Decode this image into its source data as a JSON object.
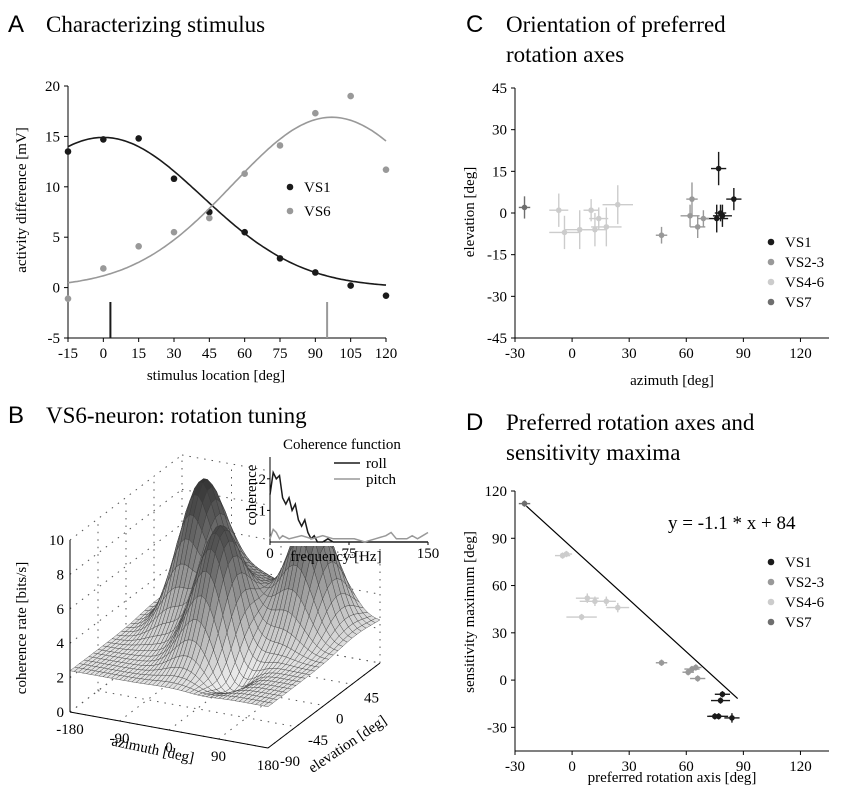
{
  "colors": {
    "vs1": "#1a1a1a",
    "vs23": "#999999",
    "vs46": "#cccccc",
    "vs7": "#6e6e6e",
    "axis": "#000000"
  },
  "chart_data": [
    {
      "panel": "A",
      "type": "scatter",
      "title": "Characterizing stimulus",
      "xlabel": "stimulus location [deg]",
      "ylabel": "activity difference [mV]",
      "xlim": [
        -15,
        120
      ],
      "ylim": [
        -5,
        20
      ],
      "xticks": [
        "-15",
        "0",
        "15",
        "30",
        "45",
        "60",
        "75",
        "90",
        "105",
        "120"
      ],
      "yticks": [
        "-5",
        "0",
        "5",
        "10",
        "15",
        "20"
      ],
      "legend_position": "right",
      "series": [
        {
          "name": "VS1",
          "color_key": "vs1",
          "x": [
            -15,
            0,
            15,
            30,
            45,
            60,
            75,
            90,
            105,
            120
          ],
          "y": [
            13.5,
            14.7,
            14.8,
            10.8,
            7.5,
            5.5,
            2.9,
            1.5,
            0.2,
            -0.8
          ],
          "fit_peak_x": 0,
          "fit_peak_y": 14.9,
          "fit_baseline": 0,
          "fit_sigma": 42,
          "marker_x": 3
        },
        {
          "name": "VS6",
          "color_key": "vs23",
          "x": [
            -15,
            0,
            15,
            30,
            45,
            60,
            75,
            90,
            105,
            120
          ],
          "y": [
            -1.1,
            1.9,
            4.1,
            5.5,
            6.9,
            11.3,
            14.1,
            17.3,
            19.0,
            11.7
          ],
          "fit_peak_x": 97,
          "fit_peak_y": 16.9,
          "fit_baseline": 0,
          "fit_sigma": 42,
          "marker_x": 95
        }
      ]
    },
    {
      "panel": "B",
      "type": "surface",
      "title": "VS6-neuron: rotation tuning",
      "xlabel": "azimuth [deg]",
      "ylabel": "elevation [deg]",
      "zlabel": "coherence rate [bits/s]",
      "xticks": [
        "-180",
        "-90",
        "0",
        "90",
        "180"
      ],
      "yticks": [
        "-90",
        "-45",
        "0",
        "45"
      ],
      "zticks": [
        "0",
        "2",
        "4",
        "6",
        "8",
        "10"
      ],
      "inset": {
        "type": "line",
        "title": "Coherence function",
        "xlabel": "frequency [Hz]",
        "ylabel": "coherence",
        "xlim": [
          0,
          150
        ],
        "ylim": [
          0,
          0.25
        ],
        "xticks": [
          "0",
          "75",
          "150"
        ],
        "yticks": [
          ".1",
          ".2"
        ],
        "series": [
          {
            "name": "roll",
            "color_key": "vs1",
            "x": [
              0,
              3,
              6,
              9,
              12,
              15,
              18,
              21,
              24,
              27,
              30,
              33,
              36,
              39,
              42,
              45,
              50,
              55,
              60,
              150
            ],
            "y": [
              0.15,
              0.22,
              0.2,
              0.21,
              0.14,
              0.12,
              0.14,
              0.1,
              0.12,
              0.07,
              0.05,
              0.07,
              0.03,
              0.01,
              0.02,
              0.0,
              0.0,
              0.01,
              0.0,
              0.0
            ]
          },
          {
            "name": "pitch",
            "color_key": "vs23",
            "x": [
              0,
              3,
              6,
              9,
              12,
              18,
              30,
              40,
              50,
              60,
              70,
              80,
              90,
              100,
              110,
              115,
              120,
              125,
              130,
              135,
              140,
              145,
              150
            ],
            "y": [
              0.01,
              0.04,
              0.03,
              0.01,
              0.02,
              0.01,
              0.02,
              0.01,
              0.02,
              0.01,
              0.01,
              0.01,
              0.0,
              0.01,
              0.02,
              0.03,
              0.01,
              0.01,
              0.01,
              0.02,
              0.01,
              0.02,
              0.03
            ]
          }
        ]
      }
    },
    {
      "panel": "C",
      "type": "scatter",
      "title": "Orientation of preferred rotation axes",
      "title_lines": [
        "Orientation of preferred",
        "rotation axes"
      ],
      "xlabel": "azimuth [deg]",
      "ylabel": "elevation [deg]",
      "xlim": [
        -30,
        135
      ],
      "ylim": [
        -45,
        45
      ],
      "xticks": [
        "-30",
        "0",
        "30",
        "60",
        "90",
        "120"
      ],
      "yticks": [
        "-45",
        "-30",
        "-15",
        "0",
        "15",
        "30",
        "45"
      ],
      "legend_position": "lower-right",
      "series": [
        {
          "name": "VS1",
          "color_key": "vs1",
          "points": [
            [
              77,
              16,
              4,
              6
            ],
            [
              76,
              -2,
              6,
              5
            ],
            [
              79,
              -1,
              5,
              4
            ],
            [
              85,
              5,
              4,
              4
            ],
            [
              78,
              0,
              3,
              3
            ]
          ]
        },
        {
          "name": "VS2-3",
          "color_key": "vs23",
          "points": [
            [
              47,
              -8,
              3,
              3
            ],
            [
              62,
              -1,
              5,
              4
            ],
            [
              63,
              5,
              3,
              6
            ],
            [
              66,
              -5,
              4,
              4
            ],
            [
              69,
              -2,
              3,
              3
            ]
          ]
        },
        {
          "name": "VS4-6",
          "color_key": "vs46",
          "points": [
            [
              -7,
              1,
              5,
              6
            ],
            [
              -4,
              -7,
              8,
              6
            ],
            [
              4,
              -6,
              8,
              7
            ],
            [
              10,
              1,
              4,
              4
            ],
            [
              12,
              -6,
              6,
              6
            ],
            [
              14,
              -2,
              5,
              4
            ],
            [
              18,
              -5,
              8,
              7
            ],
            [
              24,
              3,
              8,
              7
            ]
          ]
        },
        {
          "name": "VS7",
          "color_key": "vs7",
          "points": [
            [
              -25,
              2,
              3,
              4
            ]
          ]
        }
      ]
    },
    {
      "panel": "D",
      "type": "scatter",
      "title": "Preferred rotation axes and sensitivity maxima",
      "title_lines": [
        "Preferred rotation axes and",
        "sensitivity maxima"
      ],
      "xlabel": "preferred rotation axis [deg]",
      "ylabel": "sensitivity maximum [deg]",
      "xlim": [
        -30,
        135
      ],
      "ylim": [
        -45,
        120
      ],
      "xticks": [
        "-30",
        "0",
        "30",
        "60",
        "90",
        "120"
      ],
      "yticks": [
        "-30",
        "0",
        "30",
        "60",
        "90",
        "120"
      ],
      "legend_position": "right",
      "equation": "y = -1.1 * x + 84",
      "fit": {
        "slope": -1.1,
        "intercept": 84,
        "x_from": -24,
        "x_to": 87
      },
      "series": [
        {
          "name": "VS1",
          "color_key": "vs1",
          "points": [
            [
              77,
              -23,
              5,
              2
            ],
            [
              78,
              -13,
              5,
              2
            ],
            [
              79,
              -9,
              4,
              2
            ],
            [
              84,
              -24,
              4,
              3
            ],
            [
              75,
              -23,
              4,
              2
            ]
          ]
        },
        {
          "name": "VS2-3",
          "color_key": "vs23",
          "points": [
            [
              47,
              11,
              3,
              2
            ],
            [
              63,
              7,
              4,
              2
            ],
            [
              65,
              8,
              3,
              2
            ],
            [
              66,
              1,
              4,
              2
            ],
            [
              61,
              5,
              3,
              2
            ]
          ]
        },
        {
          "name": "VS4-6",
          "color_key": "vs46",
          "points": [
            [
              -5,
              79,
              4,
              2
            ],
            [
              -3,
              80,
              3,
              2
            ],
            [
              5,
              40,
              8,
              2
            ],
            [
              8,
              52,
              6,
              3
            ],
            [
              12,
              50,
              8,
              3
            ],
            [
              18,
              50,
              5,
              3
            ],
            [
              24,
              46,
              6,
              3
            ]
          ]
        },
        {
          "name": "VS7",
          "color_key": "vs7",
          "points": [
            [
              -25,
              112,
              3,
              2
            ]
          ]
        }
      ]
    }
  ]
}
